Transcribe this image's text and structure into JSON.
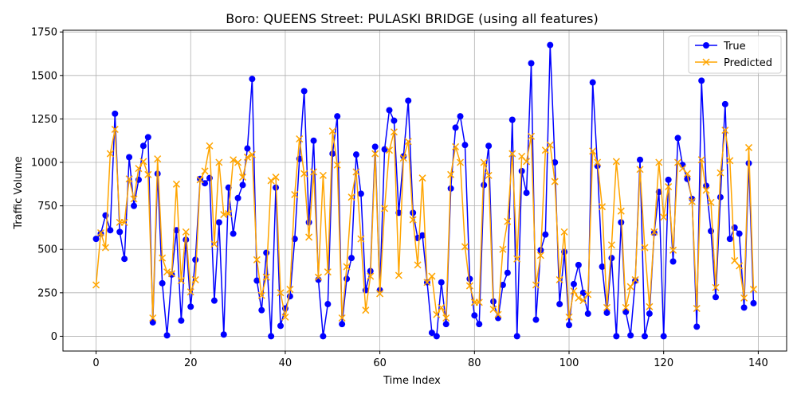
{
  "chart_data": {
    "type": "line",
    "title": "Boro: QUEENS Street: PULASKI BRIDGE (using all features)",
    "xlabel": "Time Index",
    "ylabel": "Traffic Volume",
    "xlim": [
      -7,
      146
    ],
    "ylim": [
      -85,
      1760
    ],
    "xticks": [
      0,
      20,
      40,
      60,
      80,
      100,
      120,
      140
    ],
    "yticks": [
      0,
      250,
      500,
      750,
      1000,
      1250,
      1500,
      1750
    ],
    "grid": true,
    "legend_position": "top-right",
    "series": [
      {
        "name": "True",
        "color": "#0000ff",
        "marker": "circle",
        "values": [
          560,
          590,
          695,
          610,
          1280,
          600,
          445,
          1030,
          750,
          900,
          1095,
          1145,
          80,
          935,
          305,
          5,
          355,
          610,
          90,
          555,
          170,
          440,
          905,
          880,
          910,
          205,
          655,
          10,
          855,
          590,
          795,
          870,
          1080,
          1480,
          320,
          150,
          480,
          0,
          855,
          60,
          160,
          230,
          560,
          1020,
          1410,
          655,
          1125,
          325,
          0,
          185,
          1050,
          1265,
          70,
          330,
          450,
          1045,
          820,
          265,
          375,
          1090,
          265,
          1075,
          1300,
          1240,
          710,
          1035,
          1355,
          710,
          565,
          580,
          310,
          20,
          0,
          310,
          70,
          850,
          1200,
          1265,
          1100,
          330,
          120,
          70,
          870,
          1095,
          200,
          105,
          295,
          365,
          1245,
          0,
          950,
          825,
          1570,
          95,
          495,
          585,
          1675,
          1000,
          185,
          485,
          65,
          300,
          410,
          250,
          130,
          1460,
          980,
          400,
          135,
          450,
          0,
          655,
          140,
          5,
          320,
          1015,
          0,
          130,
          595,
          830,
          0,
          900,
          430,
          1140,
          985,
          905,
          790,
          55,
          1470,
          865,
          605,
          225,
          800,
          1335,
          560,
          625,
          590,
          165,
          995,
          190
        ]
      },
      {
        "name": "Predicted",
        "color": "#ffa500",
        "marker": "x",
        "values": [
          295,
          595,
          510,
          1050,
          1190,
          655,
          655,
          905,
          790,
          965,
          1005,
          930,
          105,
          1020,
          450,
          370,
          360,
          875,
          320,
          600,
          255,
          325,
          900,
          950,
          1095,
          530,
          1000,
          700,
          705,
          1015,
          1000,
          915,
          1030,
          1045,
          440,
          235,
          340,
          895,
          915,
          250,
          110,
          270,
          815,
          1135,
          935,
          570,
          945,
          340,
          925,
          370,
          1180,
          985,
          105,
          400,
          800,
          945,
          560,
          150,
          345,
          1050,
          245,
          735,
          1070,
          1175,
          350,
          1025,
          1120,
          670,
          410,
          910,
          310,
          345,
          125,
          165,
          105,
          930,
          1090,
          1000,
          515,
          290,
          195,
          195,
          1000,
          925,
          155,
          125,
          500,
          660,
          1050,
          445,
          1035,
          1005,
          1150,
          295,
          465,
          1070,
          1100,
          890,
          325,
          600,
          110,
          260,
          220,
          205,
          240,
          1065,
          1000,
          745,
          165,
          525,
          1005,
          720,
          165,
          285,
          325,
          960,
          510,
          170,
          600,
          1000,
          685,
          860,
          495,
          1000,
          965,
          935,
          775,
          160,
          1015,
          840,
          770,
          280,
          940,
          1185,
          1010,
          435,
          405,
          220,
          1085,
          270
        ]
      }
    ]
  }
}
